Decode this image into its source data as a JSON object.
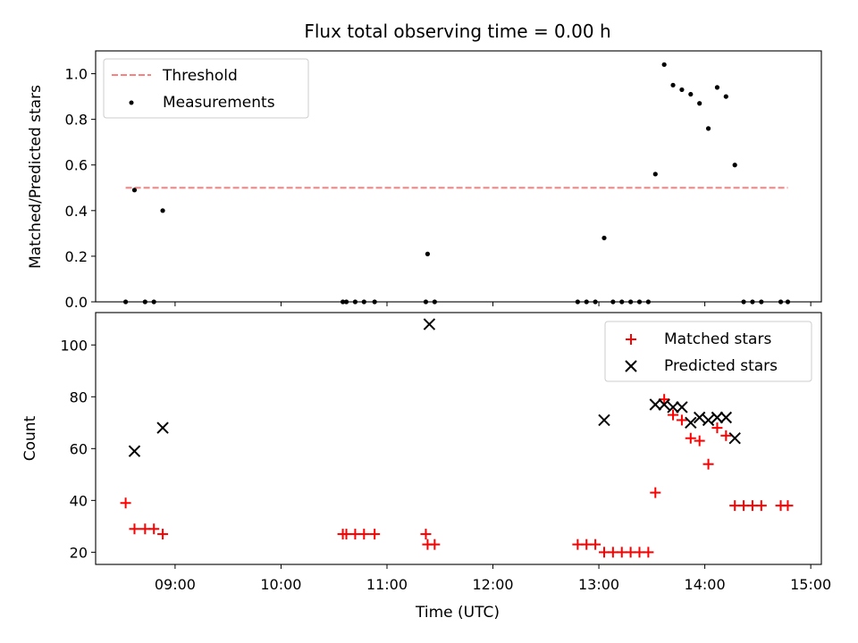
{
  "chart_data": {
    "type": "scatter",
    "title": "Flux total observing time = 0.00 h",
    "xlabel": "Time (UTC)",
    "xticks": [
      "09:00",
      "10:00",
      "11:00",
      "12:00",
      "13:00",
      "14:00",
      "15:00"
    ],
    "xlim": [
      "08:15",
      "15:06"
    ],
    "panels": [
      {
        "ylabel": "Matched/Predicted stars",
        "ylim": [
          0,
          1.1
        ],
        "yticks": [
          "0.0",
          "0.2",
          "0.4",
          "0.6",
          "0.8",
          "1.0"
        ],
        "legend": "top-left",
        "series": [
          {
            "name": "Threshold",
            "kind": "dashed-line",
            "color": "#ff7f7f",
            "points": [
              [
                "08:32",
                0.5
              ],
              [
                "14:47",
                0.5
              ]
            ]
          },
          {
            "name": "Measurements",
            "kind": "dot",
            "color": "#000000",
            "points": [
              [
                "08:32",
                0
              ],
              [
                "08:37",
                0.49
              ],
              [
                "08:43",
                0
              ],
              [
                "08:48",
                0
              ],
              [
                "08:53",
                0.4
              ],
              [
                "10:35",
                0
              ],
              [
                "10:37",
                0
              ],
              [
                "10:42",
                0
              ],
              [
                "10:47",
                0
              ],
              [
                "10:53",
                0
              ],
              [
                "11:22",
                0
              ],
              [
                "11:23",
                0.21
              ],
              [
                "11:27",
                0
              ],
              [
                "12:48",
                0
              ],
              [
                "12:53",
                0
              ],
              [
                "12:58",
                0
              ],
              [
                "13:03",
                0.28
              ],
              [
                "13:08",
                0
              ],
              [
                "13:13",
                0
              ],
              [
                "13:18",
                0
              ],
              [
                "13:23",
                0
              ],
              [
                "13:28",
                0
              ],
              [
                "13:32",
                0.56
              ],
              [
                "13:37",
                1.04
              ],
              [
                "13:42",
                0.95
              ],
              [
                "13:47",
                0.93
              ],
              [
                "13:52",
                0.91
              ],
              [
                "13:57",
                0.87
              ],
              [
                "14:02",
                0.76
              ],
              [
                "14:07",
                0.94
              ],
              [
                "14:12",
                0.9
              ],
              [
                "14:17",
                0.6
              ],
              [
                "14:22",
                0
              ],
              [
                "14:27",
                0
              ],
              [
                "14:32",
                0
              ],
              [
                "14:43",
                0
              ],
              [
                "14:47",
                0
              ]
            ]
          }
        ]
      },
      {
        "ylabel": "Count",
        "ylim": [
          15.3,
          112.5
        ],
        "yticks": [
          "20",
          "40",
          "60",
          "80",
          "100"
        ],
        "legend": "top-right",
        "series": [
          {
            "name": "Matched stars",
            "kind": "plus",
            "color": "#ff0000",
            "points": [
              [
                "08:32",
                39
              ],
              [
                "08:37",
                29
              ],
              [
                "08:43",
                29
              ],
              [
                "08:48",
                29
              ],
              [
                "08:53",
                27
              ],
              [
                "10:35",
                27
              ],
              [
                "10:37",
                27
              ],
              [
                "10:42",
                27
              ],
              [
                "10:47",
                27
              ],
              [
                "10:53",
                27
              ],
              [
                "11:22",
                27
              ],
              [
                "11:23",
                23
              ],
              [
                "11:27",
                23
              ],
              [
                "12:48",
                23
              ],
              [
                "12:53",
                23
              ],
              [
                "12:58",
                23
              ],
              [
                "13:03",
                20
              ],
              [
                "13:08",
                20
              ],
              [
                "13:13",
                20
              ],
              [
                "13:18",
                20
              ],
              [
                "13:23",
                20
              ],
              [
                "13:28",
                20
              ],
              [
                "13:32",
                43
              ],
              [
                "13:37",
                79
              ],
              [
                "13:42",
                73
              ],
              [
                "13:47",
                71
              ],
              [
                "13:52",
                64
              ],
              [
                "13:57",
                63
              ],
              [
                "14:02",
                54
              ],
              [
                "14:07",
                68
              ],
              [
                "14:12",
                65
              ],
              [
                "14:17",
                38
              ],
              [
                "14:22",
                38
              ],
              [
                "14:27",
                38
              ],
              [
                "14:32",
                38
              ],
              [
                "14:43",
                38
              ],
              [
                "14:47",
                38
              ]
            ]
          },
          {
            "name": "Predicted stars",
            "kind": "x",
            "color": "#000000",
            "points": [
              [
                "08:37",
                59
              ],
              [
                "08:53",
                68
              ],
              [
                "11:24",
                108
              ],
              [
                "13:03",
                71
              ],
              [
                "13:32",
                77
              ],
              [
                "13:37",
                77
              ],
              [
                "13:42",
                76
              ],
              [
                "13:47",
                76
              ],
              [
                "13:52",
                70
              ],
              [
                "13:57",
                72
              ],
              [
                "14:02",
                71
              ],
              [
                "14:07",
                72
              ],
              [
                "14:12",
                72
              ],
              [
                "14:17",
                64
              ]
            ]
          }
        ]
      }
    ]
  }
}
